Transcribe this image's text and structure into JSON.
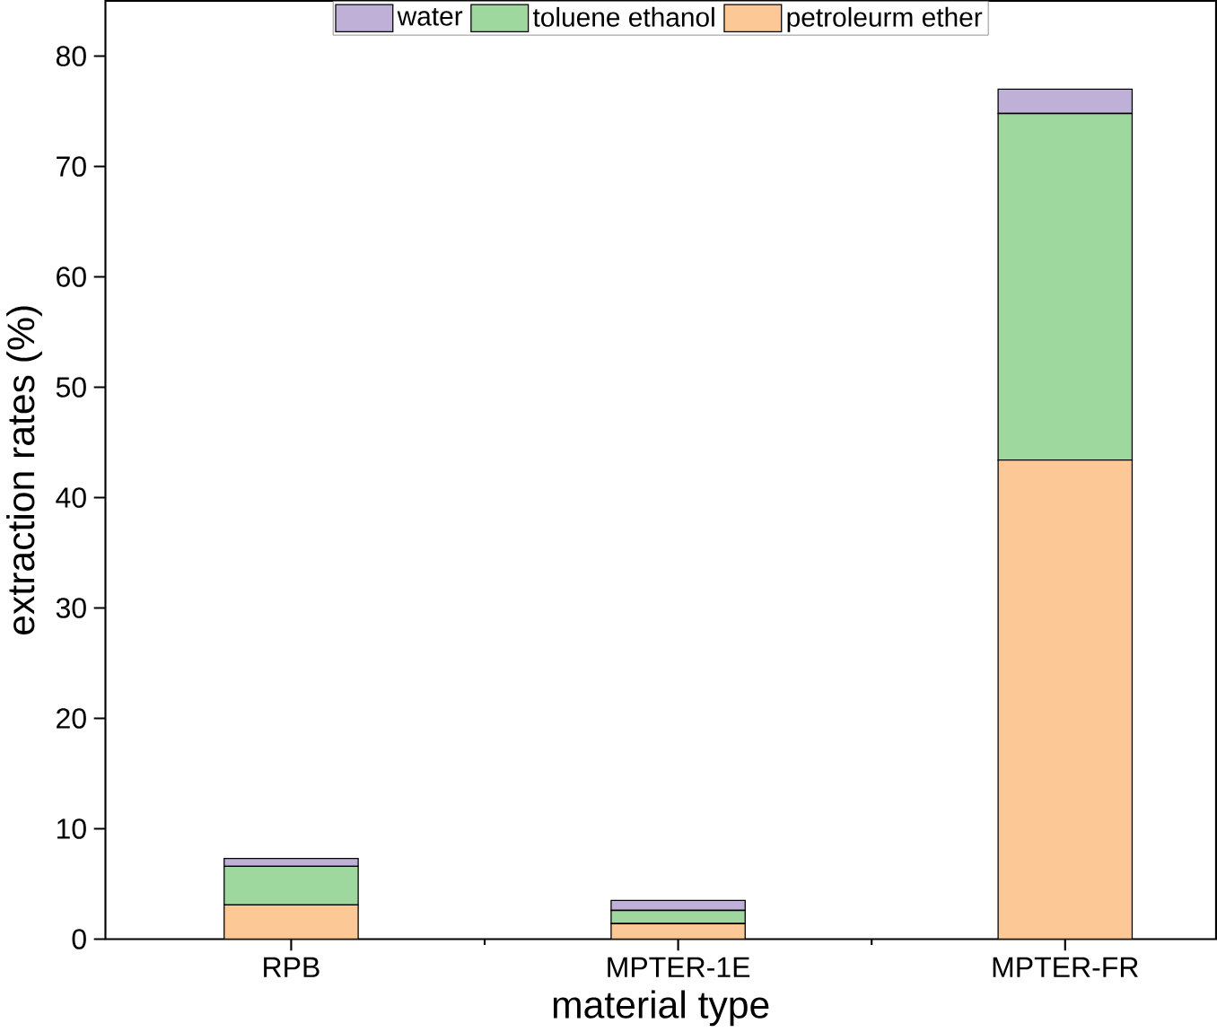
{
  "chart_data": {
    "type": "bar",
    "stacked": true,
    "xlabel": "material type",
    "ylabel": "extraction rates (%)",
    "categories": [
      "RPB",
      "MPTER-1E",
      "MPTER-FR"
    ],
    "series": [
      {
        "name": "petroleurm ether",
        "color": "#fcc896",
        "values": [
          3.1,
          1.4,
          43.4
        ]
      },
      {
        "name": "toluene ethanol",
        "color": "#9fd89f",
        "values": [
          3.5,
          1.2,
          31.4
        ]
      },
      {
        "name": "water",
        "color": "#bfb0d8",
        "values": [
          0.7,
          0.9,
          2.2
        ]
      }
    ],
    "ylim": [
      0,
      85
    ],
    "yticks": [
      0,
      10,
      20,
      30,
      40,
      50,
      60,
      70,
      80
    ],
    "legend": "top",
    "grid": false
  }
}
